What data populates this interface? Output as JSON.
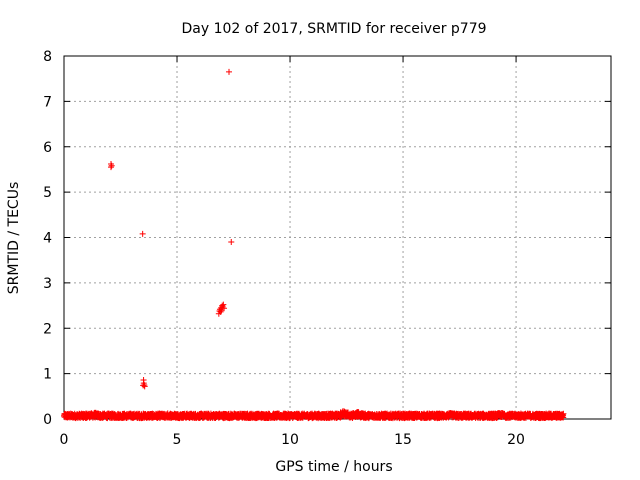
{
  "chart_data": {
    "type": "scatter",
    "title": "Day 102 of 2017, SRMTID for receiver p779",
    "xlabel": "GPS time / hours",
    "ylabel": "SRMTID / TECUs",
    "xlim": [
      0,
      24.2
    ],
    "ylim": [
      0,
      8
    ],
    "xticks": [
      0,
      5,
      10,
      15,
      20
    ],
    "yticks": [
      0,
      1,
      2,
      3,
      4,
      5,
      6,
      7,
      8
    ],
    "grid": true,
    "marker": "+",
    "color": "#ff0000",
    "series": [
      {
        "name": "SRMTID",
        "baseline": {
          "x_start": 0,
          "x_end": 22.1,
          "step": 0.0083,
          "typical_range": [
            0.02,
            0.12
          ],
          "bumps": [
            {
              "x": 1.3,
              "peak": 0.15
            },
            {
              "x": 4.7,
              "peak": 0.13
            },
            {
              "x": 12.4,
              "peak": 0.2
            },
            {
              "x": 13.0,
              "peak": 0.17
            },
            {
              "x": 17.1,
              "peak": 0.14
            },
            {
              "x": 19.4,
              "peak": 0.15
            }
          ]
        },
        "outliers": [
          {
            "x": 2.08,
            "y": 5.62
          },
          {
            "x": 2.08,
            "y": 5.55
          },
          {
            "x": 2.11,
            "y": 5.58
          },
          {
            "x": 3.48,
            "y": 4.08
          },
          {
            "x": 3.52,
            "y": 0.86
          },
          {
            "x": 3.53,
            "y": 0.79
          },
          {
            "x": 3.55,
            "y": 0.75
          },
          {
            "x": 3.57,
            "y": 0.72
          },
          {
            "x": 3.5,
            "y": 0.74
          },
          {
            "x": 6.85,
            "y": 2.32
          },
          {
            "x": 6.88,
            "y": 2.38
          },
          {
            "x": 6.9,
            "y": 2.42
          },
          {
            "x": 6.93,
            "y": 2.36
          },
          {
            "x": 6.95,
            "y": 2.45
          },
          {
            "x": 6.97,
            "y": 2.4
          },
          {
            "x": 7.0,
            "y": 2.5
          },
          {
            "x": 7.02,
            "y": 2.47
          },
          {
            "x": 7.05,
            "y": 2.52
          },
          {
            "x": 7.08,
            "y": 2.44
          },
          {
            "x": 7.3,
            "y": 7.65
          },
          {
            "x": 7.4,
            "y": 3.9
          }
        ]
      }
    ]
  }
}
